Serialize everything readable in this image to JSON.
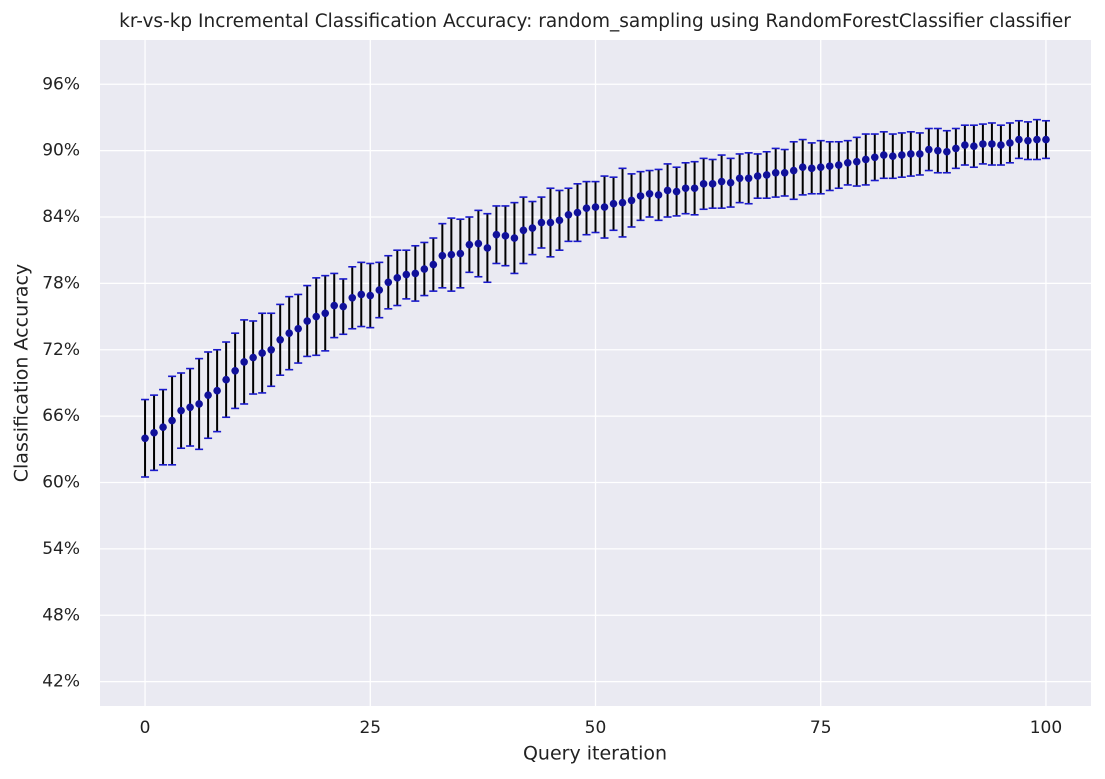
{
  "chart_data": {
    "type": "errorbar",
    "title": "kr-vs-kp Incremental Classification Accuracy: random_sampling using RandomForestClassifier classifier",
    "xlabel": "Query iteration",
    "ylabel": "Classification Accuracy",
    "xlim": [
      -5,
      105
    ],
    "ylim": [
      39.8,
      100
    ],
    "xticks": [
      0,
      25,
      50,
      75,
      100
    ],
    "yticks": [
      {
        "value": 42,
        "label": "42%"
      },
      {
        "value": 48,
        "label": "48%"
      },
      {
        "value": 54,
        "label": "54%"
      },
      {
        "value": 60,
        "label": "60%"
      },
      {
        "value": 66,
        "label": "66%"
      },
      {
        "value": 72,
        "label": "72%"
      },
      {
        "value": 78,
        "label": "78%"
      },
      {
        "value": 84,
        "label": "84%"
      },
      {
        "value": 90,
        "label": "90%"
      },
      {
        "value": 96,
        "label": "96%"
      }
    ],
    "grid": true,
    "x": [
      0,
      1,
      2,
      3,
      4,
      5,
      6,
      7,
      8,
      9,
      10,
      11,
      12,
      13,
      14,
      15,
      16,
      17,
      18,
      19,
      20,
      21,
      22,
      23,
      24,
      25,
      26,
      27,
      28,
      29,
      30,
      31,
      32,
      33,
      34,
      35,
      36,
      37,
      38,
      39,
      40,
      41,
      42,
      43,
      44,
      45,
      46,
      47,
      48,
      49,
      50,
      51,
      52,
      53,
      54,
      55,
      56,
      57,
      58,
      59,
      60,
      61,
      62,
      63,
      64,
      65,
      66,
      67,
      68,
      69,
      70,
      71,
      72,
      73,
      74,
      75,
      76,
      77,
      78,
      79,
      80,
      81,
      82,
      83,
      84,
      85,
      86,
      87,
      88,
      89,
      90,
      91,
      92,
      93,
      94,
      95,
      96,
      97,
      98,
      99,
      100
    ],
    "series": [
      {
        "color": "#10109a",
        "error_color": "#000000",
        "cap_color": "#1a1acc",
        "values": [
          64.0,
          64.5,
          65.0,
          65.6,
          66.5,
          66.8,
          67.1,
          67.9,
          68.3,
          69.3,
          70.1,
          70.9,
          71.3,
          71.7,
          72.0,
          72.9,
          73.5,
          73.9,
          74.6,
          75.0,
          75.3,
          76.0,
          75.9,
          76.7,
          77.0,
          76.9,
          77.4,
          78.1,
          78.5,
          78.8,
          78.9,
          79.3,
          79.7,
          80.5,
          80.6,
          80.7,
          81.5,
          81.6,
          81.2,
          82.4,
          82.3,
          82.1,
          82.8,
          83.0,
          83.5,
          83.5,
          83.7,
          84.2,
          84.4,
          84.8,
          84.9,
          84.9,
          85.2,
          85.3,
          85.5,
          85.9,
          86.1,
          86.0,
          86.4,
          86.3,
          86.6,
          86.6,
          87.0,
          87.0,
          87.2,
          87.1,
          87.5,
          87.5,
          87.7,
          87.8,
          88.0,
          88.0,
          88.2,
          88.5,
          88.4,
          88.5,
          88.6,
          88.7,
          88.9,
          89.0,
          89.2,
          89.4,
          89.6,
          89.5,
          89.6,
          89.7,
          89.7,
          90.1,
          90.0,
          89.9,
          90.2,
          90.5,
          90.4,
          90.6,
          90.6,
          90.5,
          90.7,
          91.0,
          90.9,
          91.0,
          91.0
        ],
        "errors": [
          3.5,
          3.4,
          3.4,
          4.0,
          3.4,
          3.5,
          4.1,
          3.9,
          3.7,
          3.4,
          3.4,
          3.8,
          3.3,
          3.6,
          3.3,
          3.2,
          3.3,
          3.1,
          3.2,
          3.5,
          3.4,
          2.9,
          2.5,
          2.8,
          2.9,
          2.9,
          2.5,
          2.4,
          2.5,
          2.2,
          2.5,
          2.4,
          2.4,
          2.9,
          3.3,
          3.1,
          2.5,
          3.0,
          3.1,
          2.6,
          2.7,
          3.2,
          3.0,
          2.4,
          2.3,
          3.1,
          2.7,
          2.4,
          2.6,
          2.4,
          2.3,
          2.8,
          2.4,
          3.1,
          2.4,
          2.2,
          2.1,
          2.3,
          2.4,
          2.2,
          2.3,
          2.4,
          2.3,
          2.2,
          2.4,
          2.2,
          2.2,
          2.3,
          2.0,
          2.1,
          2.2,
          2.1,
          2.6,
          2.5,
          2.3,
          2.4,
          2.2,
          2.1,
          2.0,
          2.2,
          2.3,
          2.1,
          2.1,
          2.0,
          2.0,
          2.0,
          1.9,
          1.9,
          2.0,
          1.9,
          1.8,
          1.8,
          1.9,
          1.8,
          1.9,
          1.8,
          1.8,
          1.7,
          1.7,
          1.8,
          1.7
        ]
      }
    ]
  }
}
